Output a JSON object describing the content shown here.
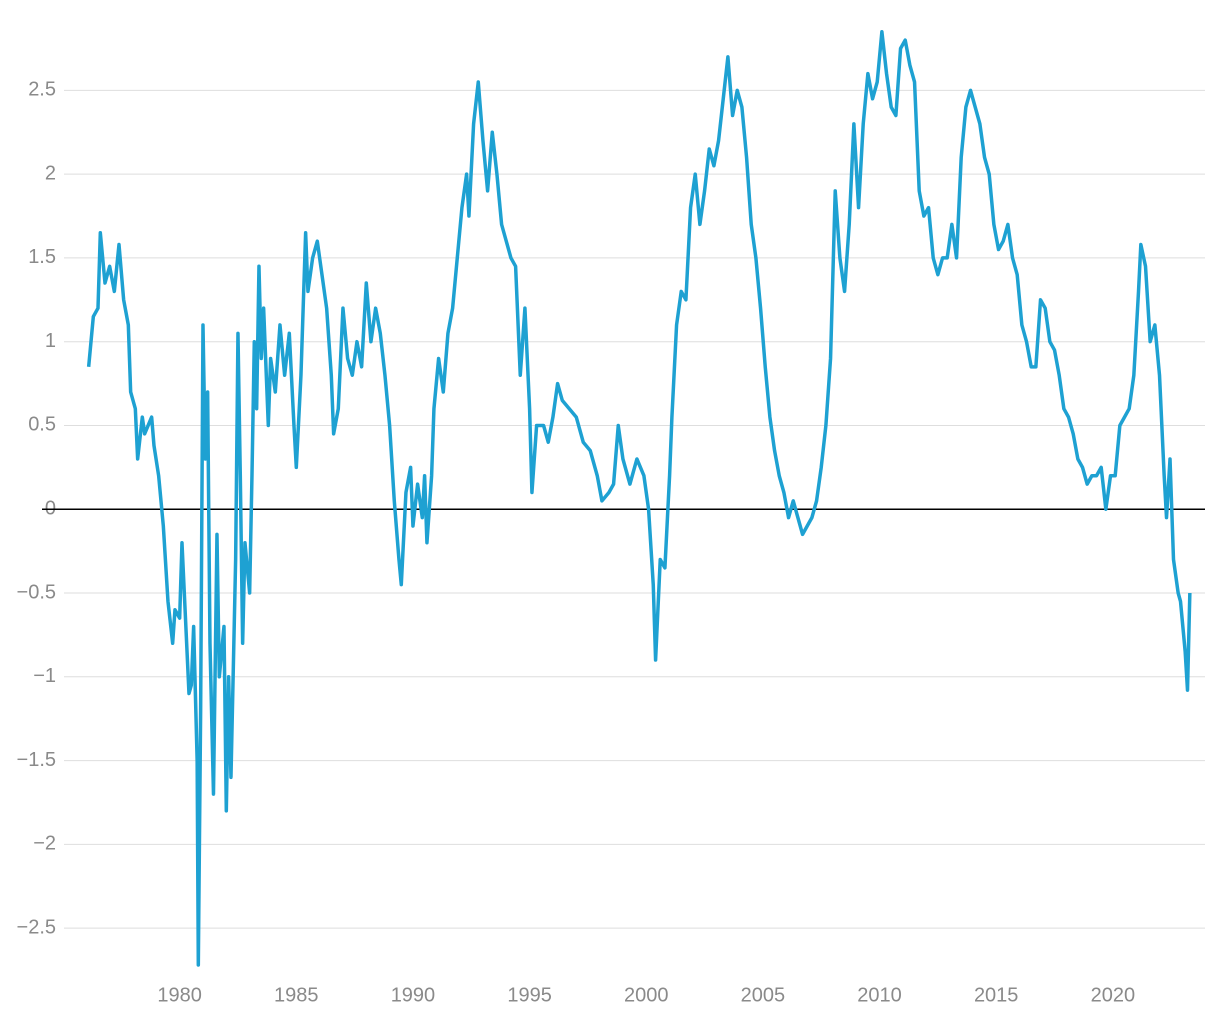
{
  "chart_data": {
    "type": "line",
    "color": "#1ea1d2",
    "grid": true,
    "zero_line": true,
    "xlim": [
      1974.1,
      2023.95
    ],
    "ylim": [
      -2.75,
      2.92
    ],
    "xticks": [
      1980,
      1985,
      1990,
      1995,
      2000,
      2005,
      2010,
      2015,
      2020
    ],
    "yticks": [
      {
        "value": -2.5,
        "label": "−2.5"
      },
      {
        "value": -2,
        "label": "−2"
      },
      {
        "value": -1.5,
        "label": "−1.5"
      },
      {
        "value": -1,
        "label": "−1"
      },
      {
        "value": -0.5,
        "label": "−0.5"
      },
      0,
      0.5,
      1,
      1.5,
      2,
      2.5
    ],
    "x": [
      1976.1,
      1976.3,
      1976.5,
      1976.6,
      1976.8,
      1977.0,
      1977.2,
      1977.4,
      1977.6,
      1977.8,
      1977.9,
      1978.1,
      1978.2,
      1978.4,
      1978.5,
      1978.8,
      1978.9,
      1979.1,
      1979.3,
      1979.5,
      1979.7,
      1979.8,
      1980.0,
      1980.1,
      1980.2,
      1980.4,
      1980.5,
      1980.6,
      1980.75,
      1980.8,
      1980.9,
      1981.0,
      1981.1,
      1981.2,
      1981.3,
      1981.45,
      1981.6,
      1981.7,
      1981.9,
      1982.0,
      1982.1,
      1982.2,
      1982.4,
      1982.5,
      1982.6,
      1982.7,
      1982.8,
      1983.0,
      1983.1,
      1983.2,
      1983.3,
      1983.4,
      1983.5,
      1983.6,
      1983.8,
      1983.9,
      1984.1,
      1984.3,
      1984.5,
      1984.7,
      1984.9,
      1985.0,
      1985.2,
      1985.4,
      1985.5,
      1985.7,
      1985.9,
      1986.1,
      1986.3,
      1986.5,
      1986.6,
      1986.8,
      1987.0,
      1987.2,
      1987.4,
      1987.6,
      1987.8,
      1988.0,
      1988.2,
      1988.4,
      1988.6,
      1988.8,
      1989.0,
      1989.2,
      1989.4,
      1989.5,
      1989.7,
      1989.9,
      1990.0,
      1990.2,
      1990.4,
      1990.5,
      1990.6,
      1990.8,
      1990.9,
      1991.1,
      1991.3,
      1991.5,
      1991.7,
      1991.9,
      1992.1,
      1992.3,
      1992.4,
      1992.6,
      1992.8,
      1993.0,
      1993.2,
      1993.4,
      1993.6,
      1993.8,
      1994.0,
      1994.2,
      1994.4,
      1994.6,
      1994.8,
      1995.0,
      1995.1,
      1995.3,
      1995.6,
      1995.8,
      1996.0,
      1996.2,
      1996.4,
      1996.7,
      1997.0,
      1997.3,
      1997.6,
      1997.9,
      1998.1,
      1998.4,
      1998.6,
      1998.8,
      1999.0,
      1999.3,
      1999.6,
      1999.9,
      2000.1,
      2000.3,
      2000.4,
      2000.6,
      2000.8,
      2001.0,
      2001.1,
      2001.3,
      2001.5,
      2001.7,
      2001.9,
      2002.1,
      2002.3,
      2002.5,
      2002.7,
      2002.9,
      2003.1,
      2003.3,
      2003.5,
      2003.7,
      2003.9,
      2004.1,
      2004.3,
      2004.5,
      2004.7,
      2004.9,
      2005.1,
      2005.3,
      2005.5,
      2005.7,
      2005.9,
      2006.1,
      2006.3,
      2006.5,
      2006.7,
      2006.9,
      2007.1,
      2007.3,
      2007.5,
      2007.7,
      2007.9,
      2008.1,
      2008.3,
      2008.5,
      2008.7,
      2008.9,
      2009.1,
      2009.3,
      2009.5,
      2009.7,
      2009.9,
      2010.1,
      2010.3,
      2010.5,
      2010.7,
      2010.9,
      2011.1,
      2011.3,
      2011.5,
      2011.7,
      2011.9,
      2012.1,
      2012.3,
      2012.5,
      2012.7,
      2012.9,
      2013.1,
      2013.3,
      2013.5,
      2013.7,
      2013.9,
      2014.1,
      2014.3,
      2014.5,
      2014.7,
      2014.9,
      2015.1,
      2015.3,
      2015.5,
      2015.7,
      2015.9,
      2016.1,
      2016.3,
      2016.5,
      2016.7,
      2016.9,
      2017.1,
      2017.3,
      2017.5,
      2017.7,
      2017.9,
      2018.1,
      2018.3,
      2018.5,
      2018.7,
      2018.9,
      2019.1,
      2019.3,
      2019.5,
      2019.7,
      2019.9,
      2020.1,
      2020.3,
      2020.5,
      2020.7,
      2020.9,
      2021.1,
      2021.2,
      2021.4,
      2021.6,
      2021.8,
      2022.0,
      2022.2,
      2022.3,
      2022.45,
      2022.6,
      2022.8,
      2022.9,
      2023.0,
      2023.1,
      2023.2,
      2023.3
    ],
    "values": [
      0.85,
      1.15,
      1.2,
      1.65,
      1.35,
      1.45,
      1.3,
      1.58,
      1.25,
      1.1,
      0.7,
      0.6,
      0.3,
      0.55,
      0.45,
      0.55,
      0.38,
      0.2,
      -0.1,
      -0.55,
      -0.8,
      -0.6,
      -0.65,
      -0.2,
      -0.5,
      -1.1,
      -1.05,
      -0.7,
      -1.5,
      -2.72,
      -1.2,
      1.1,
      0.3,
      0.7,
      -0.8,
      -1.7,
      -0.15,
      -1.0,
      -0.7,
      -1.8,
      -1.0,
      -1.6,
      -0.3,
      1.05,
      0.2,
      -0.8,
      -0.2,
      -0.5,
      0.2,
      1.0,
      0.6,
      1.45,
      0.9,
      1.2,
      0.5,
      0.9,
      0.7,
      1.1,
      0.8,
      1.05,
      0.5,
      0.25,
      0.8,
      1.65,
      1.3,
      1.5,
      1.6,
      1.4,
      1.2,
      0.8,
      0.45,
      0.6,
      1.2,
      0.9,
      0.8,
      1.0,
      0.85,
      1.35,
      1.0,
      1.2,
      1.05,
      0.8,
      0.5,
      0.05,
      -0.3,
      -0.45,
      0.1,
      0.25,
      -0.1,
      0.15,
      -0.05,
      0.2,
      -0.2,
      0.2,
      0.6,
      0.9,
      0.7,
      1.05,
      1.2,
      1.5,
      1.8,
      2.0,
      1.75,
      2.3,
      2.55,
      2.2,
      1.9,
      2.25,
      2.0,
      1.7,
      1.6,
      1.5,
      1.45,
      0.8,
      1.2,
      0.6,
      0.1,
      0.5,
      0.5,
      0.4,
      0.55,
      0.75,
      0.65,
      0.6,
      0.55,
      0.4,
      0.35,
      0.2,
      0.05,
      0.1,
      0.15,
      0.5,
      0.3,
      0.15,
      0.3,
      0.2,
      0.0,
      -0.45,
      -0.9,
      -0.3,
      -0.35,
      0.2,
      0.55,
      1.1,
      1.3,
      1.25,
      1.8,
      2.0,
      1.7,
      1.9,
      2.15,
      2.05,
      2.2,
      2.45,
      2.7,
      2.35,
      2.5,
      2.4,
      2.1,
      1.7,
      1.5,
      1.2,
      0.85,
      0.55,
      0.35,
      0.2,
      0.1,
      -0.05,
      0.05,
      -0.05,
      -0.15,
      -0.1,
      -0.05,
      0.05,
      0.25,
      0.5,
      0.9,
      1.9,
      1.5,
      1.3,
      1.7,
      2.3,
      1.8,
      2.3,
      2.6,
      2.45,
      2.55,
      2.85,
      2.6,
      2.4,
      2.35,
      2.75,
      2.8,
      2.65,
      2.55,
      1.9,
      1.75,
      1.8,
      1.5,
      1.4,
      1.5,
      1.5,
      1.7,
      1.5,
      2.1,
      2.4,
      2.5,
      2.4,
      2.3,
      2.1,
      2.0,
      1.7,
      1.55,
      1.6,
      1.7,
      1.5,
      1.4,
      1.1,
      1.0,
      0.85,
      0.85,
      1.25,
      1.2,
      1.0,
      0.95,
      0.8,
      0.6,
      0.55,
      0.45,
      0.3,
      0.25,
      0.15,
      0.2,
      0.2,
      0.25,
      0.0,
      0.2,
      0.2,
      0.5,
      0.55,
      0.6,
      0.8,
      1.3,
      1.58,
      1.45,
      1.0,
      1.1,
      0.8,
      0.2,
      -0.05,
      0.3,
      -0.3,
      -0.5,
      -0.55,
      -0.7,
      -0.85,
      -1.08,
      -0.5
    ]
  }
}
